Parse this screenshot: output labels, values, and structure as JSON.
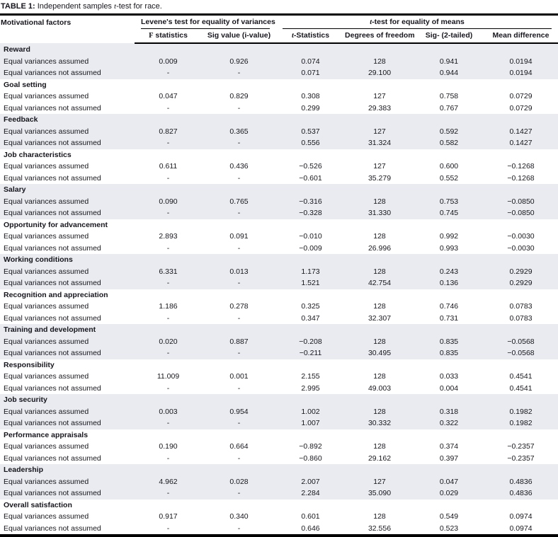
{
  "title": {
    "label": "TABLE 1:",
    "caption_pre": " Independent samples ",
    "caption_italic": "t",
    "caption_post": "-test for race."
  },
  "headers": {
    "col1": "Motivational factors",
    "levene_span": "Levene's test for equality of variances",
    "ttest_span_italic": "t",
    "ttest_span_rest": "-test for equality of means",
    "f_symbol": "F",
    "f_rest": " statistics",
    "sig_value": "Sig value (i-value)",
    "t_symbol": "t",
    "t_rest": "-Statistics",
    "degrees_of_freedom": "Degrees of freedom",
    "sig_2tailed": "Sig- (2-tailed)",
    "mean_difference": "Mean difference"
  },
  "table": {
    "row_label_assumed": "Equal variances assumed",
    "row_label_not_assumed": "Equal variances not assumed",
    "groups": [
      {
        "factor": "Reward",
        "assumed": [
          "0.009",
          "0.926",
          "0.074",
          "128",
          "0.941",
          "0.0194"
        ],
        "not_assumed": [
          "-",
          "-",
          "0.071",
          "29.100",
          "0.944",
          "0.0194"
        ]
      },
      {
        "factor": "Goal setting",
        "assumed": [
          "0.047",
          "0.829",
          "0.308",
          "127",
          "0.758",
          "0.0729"
        ],
        "not_assumed": [
          "-",
          "-",
          "0.299",
          "29.383",
          "0.767",
          "0.0729"
        ]
      },
      {
        "factor": "Feedback",
        "assumed": [
          "0.827",
          "0.365",
          "0.537",
          "127",
          "0.592",
          "0.1427"
        ],
        "not_assumed": [
          "-",
          "-",
          "0.556",
          "31.324",
          "0.582",
          "0.1427"
        ]
      },
      {
        "factor": "Job characteristics",
        "assumed": [
          "0.611",
          "0.436",
          "−0.526",
          "127",
          "0.600",
          "−0.1268"
        ],
        "not_assumed": [
          "-",
          "-",
          "−0.601",
          "35.279",
          "0.552",
          "−0.1268"
        ]
      },
      {
        "factor": "Salary",
        "assumed": [
          "0.090",
          "0.765",
          "−0.316",
          "128",
          "0.753",
          "−0.0850"
        ],
        "not_assumed": [
          "-",
          "-",
          "−0.328",
          "31.330",
          "0.745",
          "−0.0850"
        ]
      },
      {
        "factor": "Opportunity for advancement",
        "assumed": [
          "2.893",
          "0.091",
          "−0.010",
          "128",
          "0.992",
          "−0.0030"
        ],
        "not_assumed": [
          "-",
          "-",
          "−0.009",
          "26.996",
          "0.993",
          "−0.0030"
        ]
      },
      {
        "factor": "Working conditions",
        "assumed": [
          "6.331",
          "0.013",
          "1.173",
          "128",
          "0.243",
          "0.2929"
        ],
        "not_assumed": [
          "-",
          "-",
          "1.521",
          "42.754",
          "0.136",
          "0.2929"
        ]
      },
      {
        "factor": "Recognition and appreciation",
        "assumed": [
          "1.186",
          "0.278",
          "0.325",
          "128",
          "0.746",
          "0.0783"
        ],
        "not_assumed": [
          "-",
          "-",
          "0.347",
          "32.307",
          "0.731",
          "0.0783"
        ]
      },
      {
        "factor": "Training and development",
        "assumed": [
          "0.020",
          "0.887",
          "−0.208",
          "128",
          "0.835",
          "−0.0568"
        ],
        "not_assumed": [
          "-",
          "-",
          "−0.211",
          "30.495",
          "0.835",
          "−0.0568"
        ]
      },
      {
        "factor": "Responsibility",
        "assumed": [
          "11.009",
          "0.001",
          "2.155",
          "128",
          "0.033",
          "0.4541"
        ],
        "not_assumed": [
          "-",
          "-",
          "2.995",
          "49.003",
          "0.004",
          "0.4541"
        ]
      },
      {
        "factor": "Job security",
        "assumed": [
          "0.003",
          "0.954",
          "1.002",
          "128",
          "0.318",
          "0.1982"
        ],
        "not_assumed": [
          "-",
          "-",
          "1.007",
          "30.332",
          "0.322",
          "0.1982"
        ]
      },
      {
        "factor": "Performance appraisals",
        "assumed": [
          "0.190",
          "0.664",
          "−0.892",
          "128",
          "0.374",
          "−0.2357"
        ],
        "not_assumed": [
          "-",
          "-",
          "−0.860",
          "29.162",
          "0.397",
          "−0.2357"
        ]
      },
      {
        "factor": "Leadership",
        "assumed": [
          "4.962",
          "0.028",
          "2.007",
          "127",
          "0.047",
          "0.4836"
        ],
        "not_assumed": [
          "-",
          "-",
          "2.284",
          "35.090",
          "0.029",
          "0.4836"
        ]
      },
      {
        "factor": "Overall satisfaction",
        "assumed": [
          "0.917",
          "0.340",
          "0.601",
          "128",
          "0.549",
          "0.0974"
        ],
        "not_assumed": [
          "-",
          "-",
          "0.646",
          "32.556",
          "0.523",
          "0.0974"
        ]
      }
    ]
  },
  "colors": {
    "shaded_row_bg": "#e9ebf0",
    "rule_color": "#000000",
    "text_color": "#16161e"
  }
}
